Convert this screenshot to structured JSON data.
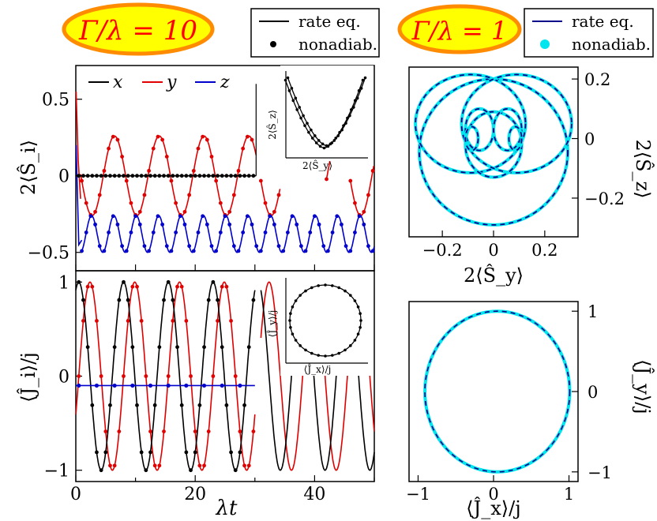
{
  "badges": {
    "left": "Γ/λ = 10",
    "right": "Γ/λ = 1"
  },
  "legend_left": {
    "entries": [
      {
        "label": "rate eq.",
        "marker": "line",
        "color": "#000000"
      },
      {
        "label": "nonadiab.",
        "marker": "dot",
        "color": "#000000"
      }
    ]
  },
  "legend_right": {
    "entries": [
      {
        "label": "rate eq.",
        "marker": "line",
        "color": "#00008b"
      },
      {
        "label": "nonadiab.",
        "marker": "dot",
        "color": "#00e5ee"
      }
    ]
  },
  "colors": {
    "x": "#000000",
    "y": "#e00000",
    "z": "#0000cc",
    "badge_fill": "#ffff00",
    "badge_stroke": "#ff8c00",
    "badge_text": "#ff0000",
    "cyan": "#00e5ee",
    "navy": "#00008b"
  },
  "chart_data": [
    {
      "id": "top-left",
      "type": "line",
      "xlim": [
        0,
        50
      ],
      "ylim": [
        -0.62,
        0.72
      ],
      "ylabel": "2⟨Ŝ_i⟩",
      "yticks": [
        -0.5,
        0,
        0.5
      ],
      "ytick_labels": [
        "−0.5",
        "0",
        "0.5"
      ],
      "legend": [
        "x",
        "y",
        "z"
      ],
      "series": [
        {
          "name": "x",
          "color": "#000000",
          "description": "constant 0 until λt≈30"
        },
        {
          "name": "y",
          "color": "#e00000",
          "center": 0.0,
          "amplitude": 0.26,
          "period": 7.5
        },
        {
          "name": "z",
          "color": "#0000cc",
          "center": -0.38,
          "amplitude": 0.12,
          "period": 3.75
        }
      ],
      "inset": {
        "xlabel": "2⟨Ŝ_y⟩",
        "ylabel": "2⟨Ŝ_z⟩"
      }
    },
    {
      "id": "bottom-left",
      "type": "line",
      "xlim": [
        0,
        50
      ],
      "ylim": [
        -1.12,
        1.12
      ],
      "xlabel": "λt",
      "ylabel": "⟨Ĵ_i⟩/j",
      "xticks": [
        0,
        20,
        40
      ],
      "xtick_labels": [
        "0",
        "20",
        "40"
      ],
      "yticks": [
        -1,
        0,
        1
      ],
      "ytick_labels": [
        "−1",
        "0",
        "1"
      ],
      "series": [
        {
          "name": "x",
          "color": "#000000",
          "period": 7.5,
          "amplitude": 1.0
        },
        {
          "name": "y",
          "color": "#e00000",
          "period": 7.5,
          "amplitude": 1.0
        },
        {
          "name": "z",
          "color": "#0000cc",
          "value": -0.1
        }
      ],
      "inset": {
        "xlabel": "⟨Ĵ_x⟩/j",
        "ylabel": "⟨Ĵ_y⟩/j"
      }
    },
    {
      "id": "top-right",
      "type": "line",
      "xlim": [
        -0.33,
        0.33
      ],
      "ylim": [
        -0.33,
        0.24
      ],
      "xlabel": "2⟨Ŝ_y⟩",
      "ylabel": "2⟨Ŝ_z⟩",
      "xticks": [
        -0.2,
        0,
        0.2
      ],
      "xtick_labels": [
        "−0.2",
        "0",
        "0.2"
      ],
      "yticks": [
        -0.2,
        0,
        0.2
      ],
      "ytick_labels": [
        "−0.2",
        "0",
        "0.2"
      ]
    },
    {
      "id": "bottom-right",
      "type": "line",
      "xlim": [
        -1.12,
        1.12
      ],
      "ylim": [
        -1.12,
        1.12
      ],
      "xlabel": "⟨Ĵ_x⟩/j",
      "ylabel": "⟨Ĵ_y⟩/j",
      "xticks": [
        -1,
        0,
        1
      ],
      "xtick_labels": [
        "−1",
        "0",
        "1"
      ],
      "yticks": [
        -1,
        0,
        1
      ],
      "ytick_labels": [
        "−1",
        "0",
        "1"
      ]
    }
  ]
}
